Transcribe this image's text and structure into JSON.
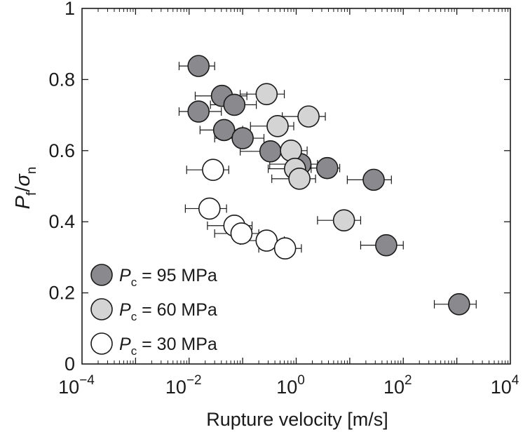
{
  "chart_data": {
    "type": "scatter",
    "title": "",
    "xlabel": "Rupture velocity [m/s]",
    "ylabel": {
      "main": "P",
      "sub1": "f",
      "slash": "/",
      "sigma": "σ",
      "sub2": "n"
    },
    "xscale": "log",
    "xlim": [
      0.0001,
      10000
    ],
    "ylim": [
      0,
      1
    ],
    "x_ticks": [
      {
        "value": 0.0001,
        "base": "10",
        "exp": "−4"
      },
      {
        "value": 0.01,
        "base": "10",
        "exp": "−2"
      },
      {
        "value": 1,
        "base": "10",
        "exp": "0"
      },
      {
        "value": 100,
        "base": "10",
        "exp": "2"
      },
      {
        "value": 10000,
        "base": "10",
        "exp": "4"
      }
    ],
    "y_ticks": [
      {
        "value": 0,
        "label": "0"
      },
      {
        "value": 0.2,
        "label": "0.2"
      },
      {
        "value": 0.4,
        "label": "0.4"
      },
      {
        "value": 0.6,
        "label": "0.6"
      },
      {
        "value": 0.8,
        "label": "0.8"
      },
      {
        "value": 1,
        "label": "1"
      }
    ],
    "grid": false,
    "legend_position": "bottom-left",
    "series": [
      {
        "name": "Pc = 95 MPa",
        "label_main": "P",
        "label_sub": "c",
        "label_rest": " = 95 MPa",
        "color": "#8a8a8e",
        "points": [
          {
            "x": 0.015,
            "y": 0.838,
            "xerr": [
              0.0065,
              0.03
            ]
          },
          {
            "x": 0.041,
            "y": 0.754,
            "xerr": [
              0.013,
              0.12
            ]
          },
          {
            "x": 0.07,
            "y": 0.729,
            "xerr": [
              0.025,
              0.18
            ]
          },
          {
            "x": 0.015,
            "y": 0.71,
            "xerr": [
              0.0065,
              0.04
            ]
          },
          {
            "x": 0.045,
            "y": 0.658,
            "xerr": [
              0.016,
              0.1
            ]
          },
          {
            "x": 0.1,
            "y": 0.635,
            "xerr": [
              0.03,
              0.25
            ]
          },
          {
            "x": 0.33,
            "y": 0.598,
            "xerr": [
              0.09,
              0.7
            ]
          },
          {
            "x": 1.2,
            "y": 0.562,
            "xerr": [
              0.32,
              2.5
            ]
          },
          {
            "x": 3.8,
            "y": 0.551,
            "xerr": [
              1.3,
              6.5
            ]
          },
          {
            "x": 28.0,
            "y": 0.518,
            "xerr": [
              9.0,
              60.0
            ]
          },
          {
            "x": 48.0,
            "y": 0.334,
            "xerr": [
              16.0,
              100.0
            ]
          },
          {
            "x": 1100.0,
            "y": 0.168,
            "xerr": [
              380.0,
              2300.0
            ]
          }
        ]
      },
      {
        "name": "Pc = 60 MPa",
        "label_main": "P",
        "label_sub": "c",
        "label_rest": " = 60 MPa",
        "color": "#d4d4d4",
        "points": [
          {
            "x": 0.28,
            "y": 0.759,
            "xerr": [
              0.09,
              0.6
            ]
          },
          {
            "x": 1.7,
            "y": 0.696,
            "xerr": [
              0.55,
              3.5
            ]
          },
          {
            "x": 0.45,
            "y": 0.669,
            "xerr": [
              0.14,
              0.9
            ]
          },
          {
            "x": 0.8,
            "y": 0.6,
            "xerr": [
              0.25,
              1.6
            ]
          },
          {
            "x": 0.95,
            "y": 0.549,
            "xerr": [
              0.3,
              1.9
            ]
          },
          {
            "x": 1.15,
            "y": 0.521,
            "xerr": [
              0.35,
              2.3
            ]
          },
          {
            "x": 7.8,
            "y": 0.404,
            "xerr": [
              2.5,
              16.0
            ]
          }
        ]
      },
      {
        "name": "Pc = 30 MPa",
        "label_main": "P",
        "label_sub": "c",
        "label_rest": " = 30 MPa",
        "color": "#ffffff",
        "points": [
          {
            "x": 0.028,
            "y": 0.546,
            "xerr": [
              0.009,
              0.055
            ]
          },
          {
            "x": 0.024,
            "y": 0.437,
            "xerr": [
              0.0085,
              0.05
            ]
          },
          {
            "x": 0.07,
            "y": 0.389,
            "xerr": [
              0.022,
              0.15
            ]
          },
          {
            "x": 0.095,
            "y": 0.367,
            "xerr": [
              0.03,
              0.2
            ]
          },
          {
            "x": 0.28,
            "y": 0.347,
            "xerr": [
              0.09,
              0.6
            ]
          },
          {
            "x": 0.62,
            "y": 0.325,
            "xerr": [
              0.2,
              1.25
            ]
          }
        ]
      }
    ]
  }
}
